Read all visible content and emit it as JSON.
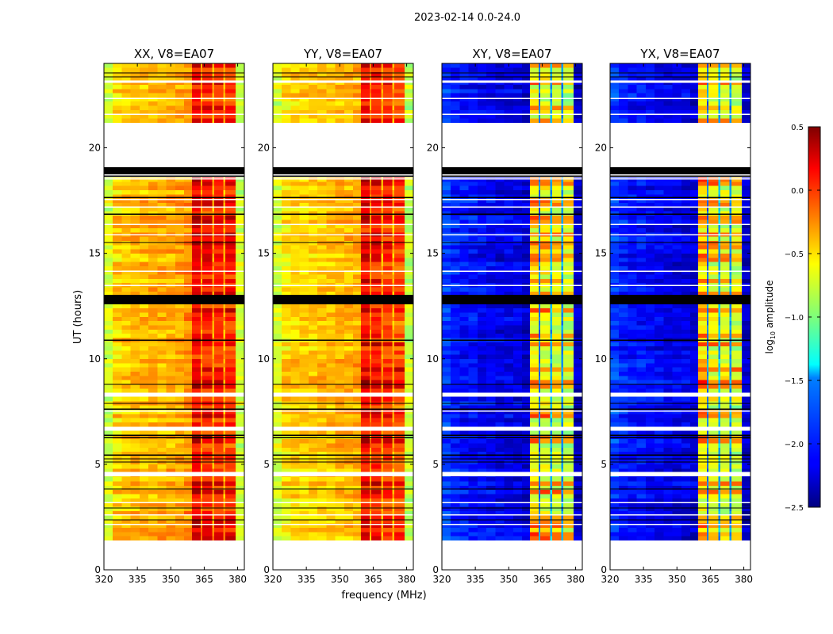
{
  "chart_data": {
    "type": "heatmap",
    "title": "2023-02-14 0.0-24.0",
    "xlabel": "frequency (MHz)",
    "ylabel": "UT (hours)",
    "xlim": [
      320,
      383
    ],
    "ylim": [
      0,
      24
    ],
    "xticks": [
      320,
      335,
      350,
      365,
      380
    ],
    "yticks": [
      0,
      5,
      10,
      15,
      20
    ],
    "colorbar": {
      "label": "log10 amplitude",
      "label_main": "log",
      "label_sub": "10",
      "label_rest": " amplitude",
      "range": [
        -2.5,
        0.5
      ],
      "ticks": [
        "0.5",
        "0.0",
        "−0.5",
        "−1.0",
        "−1.5",
        "−2.0",
        "−2.5"
      ],
      "tick_values": [
        0.5,
        0.0,
        -0.5,
        -1.0,
        -1.5,
        -2.0,
        -2.5
      ],
      "colormap": "jet"
    },
    "time_step_hours": 0.2,
    "data_coverage_hours": [
      [
        1.39,
        6.65
      ],
      [
        6.9,
        8.22
      ],
      [
        8.34,
        12.58
      ],
      [
        13.03,
        18.55
      ],
      [
        21.18,
        24.0
      ]
    ],
    "masked_bands_hours": [
      [
        12.58,
        13.03
      ],
      [
        18.75,
        19.08
      ]
    ],
    "masked_lines_hours": [
      23.55,
      23.36,
      18.66,
      17.65,
      16.86,
      15.51,
      10.89,
      8.79,
      7.89,
      7.62,
      6.38,
      6.27,
      5.44,
      5.26,
      5.11,
      3.83,
      2.93,
      2.37
    ],
    "blank_lines_hours": [
      [
        23.08,
        23.2
      ],
      [
        22.32,
        22.37
      ],
      [
        21.57,
        21.62
      ],
      [
        18.49,
        18.55
      ],
      [
        17.52,
        17.57
      ],
      [
        17.18,
        17.23
      ],
      [
        16.35,
        16.4
      ],
      [
        15.86,
        15.91
      ],
      [
        14.13,
        14.18
      ],
      [
        13.46,
        13.51
      ],
      [
        7.49,
        7.54
      ],
      [
        4.44,
        4.64
      ],
      [
        3.17,
        3.22
      ],
      [
        2.57,
        2.62
      ],
      [
        2.12,
        2.17
      ]
    ],
    "freq_edges_mhz": [
      320,
      324,
      328,
      332,
      336,
      340,
      344,
      348,
      352,
      356,
      359.5,
      363.5,
      364.2,
      368.5,
      369.5,
      373.5,
      374.5,
      379,
      383
    ],
    "panels": [
      {
        "title": "XX, V8=EA07",
        "column_levels": [
          -0.75,
          -0.5,
          -0.45,
          -0.42,
          -0.42,
          -0.4,
          -0.4,
          -0.38,
          -0.35,
          -0.3,
          0.08,
          -0.3,
          0.0,
          -0.35,
          -0.05,
          -0.35,
          -0.05,
          -0.75
        ],
        "band_variability": 0.3
      },
      {
        "title": "YY, V8=EA07",
        "column_levels": [
          -0.75,
          -0.55,
          -0.5,
          -0.5,
          -0.48,
          -0.46,
          -0.45,
          -0.42,
          -0.4,
          -0.38,
          0.05,
          -0.3,
          -0.02,
          -0.35,
          -0.1,
          -0.4,
          -0.15,
          -0.8
        ],
        "band_variability": 0.3
      },
      {
        "title": "XY, V8=EA07",
        "column_levels": [
          -1.95,
          -2.05,
          -2.1,
          -2.1,
          -2.15,
          -2.15,
          -2.2,
          -2.2,
          -2.2,
          -2.25,
          -0.65,
          -1.8,
          -0.7,
          -1.6,
          -0.75,
          -1.7,
          -0.8,
          -2.3
        ],
        "band_variability": 0.55
      },
      {
        "title": "YX, V8=EA07",
        "column_levels": [
          -1.95,
          -2.05,
          -2.1,
          -2.1,
          -2.15,
          -2.15,
          -2.2,
          -2.2,
          -2.2,
          -2.25,
          -0.6,
          -1.8,
          -0.7,
          -1.6,
          -0.75,
          -1.7,
          -0.8,
          -2.3
        ],
        "band_variability": 0.55
      }
    ]
  }
}
